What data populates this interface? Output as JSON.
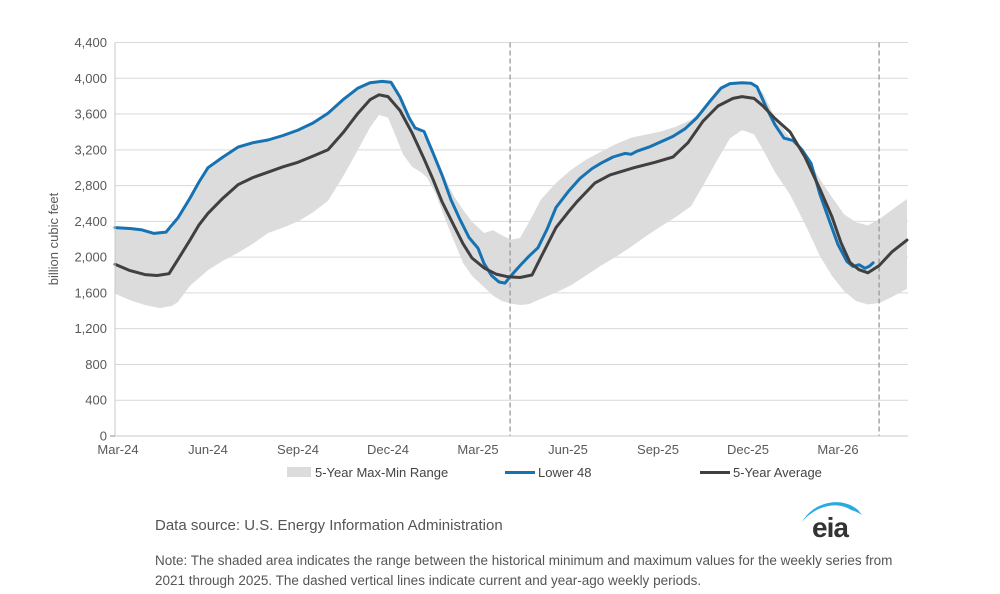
{
  "legend": {
    "items": [
      {
        "label": "5-Year Max-Min Range",
        "swatch": "band",
        "color": "#dcdcdc"
      },
      {
        "label": "Lower 48",
        "swatch": "line",
        "color": "#1772b2"
      },
      {
        "label": "5-Year Average",
        "swatch": "line",
        "color": "#404040"
      }
    ]
  },
  "footer": {
    "data_source": "Data source: U.S. Energy Information Administration",
    "note": "Note: The shaded area indicates the range between the historical minimum and maximum values for the weekly series from 2021 through 2025. The dashed vertical lines indicate current and year-ago weekly periods.",
    "logo_text": "eia"
  },
  "colors": {
    "grid": "#d9d9d9",
    "axis": "#c9c9c9",
    "tick_text": "#595959",
    "dashed_line": "#9e9e9e",
    "band": "#dcdcdc",
    "lower48": "#1772b2",
    "average": "#404040",
    "logo_swoosh": "#29abe2",
    "logo_text": "#333333"
  },
  "chart_data": {
    "type": "line",
    "title": "",
    "xlabel": "",
    "ylabel": "billion cubic feet",
    "ylim": [
      0,
      4400
    ],
    "y_tick_step": 400,
    "grid": true,
    "legend_position": "bottom",
    "x_unit": "months since Mar-2024",
    "x_range": [
      -0.1,
      26.3
    ],
    "x_ticks": [
      {
        "label": "Mar-24",
        "m": 0
      },
      {
        "label": "Jun-24",
        "m": 3
      },
      {
        "label": "Sep-24",
        "m": 6
      },
      {
        "label": "Dec-24",
        "m": 9
      },
      {
        "label": "Mar-25",
        "m": 12
      },
      {
        "label": "Jun-25",
        "m": 15
      },
      {
        "label": "Sep-25",
        "m": 18
      },
      {
        "label": "Dec-25",
        "m": 21
      },
      {
        "label": "Mar-26",
        "m": 24
      }
    ],
    "vlines": [
      {
        "m": 13.07,
        "meaning": "year-ago weekly period"
      },
      {
        "m": 25.37,
        "meaning": "current weekly period"
      }
    ],
    "series": [
      {
        "name": "5-Year Max-Min Range",
        "type": "band",
        "color": "#dcdcdc",
        "points_m_max_min": [
          [
            -0.1,
            2340,
            1590
          ],
          [
            0.4,
            2325,
            1520
          ],
          [
            0.9,
            2295,
            1465
          ],
          [
            1.4,
            2265,
            1430
          ],
          [
            1.8,
            2320,
            1455
          ],
          [
            2.0,
            2440,
            1500
          ],
          [
            2.4,
            2665,
            1680
          ],
          [
            3.0,
            3005,
            1855
          ],
          [
            3.5,
            3125,
            1960
          ],
          [
            4.0,
            3235,
            2050
          ],
          [
            4.5,
            3285,
            2150
          ],
          [
            5.0,
            3315,
            2270
          ],
          [
            5.5,
            3365,
            2330
          ],
          [
            6.0,
            3425,
            2400
          ],
          [
            6.5,
            3505,
            2500
          ],
          [
            7.0,
            3615,
            2630
          ],
          [
            7.5,
            3765,
            2900
          ],
          [
            8.0,
            3895,
            3200
          ],
          [
            8.4,
            3955,
            3450
          ],
          [
            8.7,
            3965,
            3590
          ],
          [
            9.0,
            3960,
            3560
          ],
          [
            9.2,
            3940,
            3400
          ],
          [
            9.5,
            3705,
            3150
          ],
          [
            9.8,
            3455,
            3010
          ],
          [
            10.1,
            3400,
            2950
          ],
          [
            10.3,
            3300,
            2890
          ],
          [
            10.6,
            3120,
            2700
          ],
          [
            10.9,
            2880,
            2430
          ],
          [
            11.2,
            2680,
            2180
          ],
          [
            11.5,
            2530,
            1935
          ],
          [
            11.8,
            2395,
            1790
          ],
          [
            12.2,
            2270,
            1665
          ],
          [
            12.5,
            2300,
            1570
          ],
          [
            12.8,
            2245,
            1510
          ],
          [
            13.1,
            2195,
            1480
          ],
          [
            13.4,
            2215,
            1465
          ],
          [
            13.7,
            2390,
            1475
          ],
          [
            14.1,
            2645,
            1535
          ],
          [
            14.6,
            2830,
            1605
          ],
          [
            15.1,
            2975,
            1685
          ],
          [
            15.6,
            3090,
            1795
          ],
          [
            16.1,
            3180,
            1905
          ],
          [
            16.6,
            3265,
            2005
          ],
          [
            17.1,
            3335,
            2115
          ],
          [
            17.6,
            3370,
            2235
          ],
          [
            18.1,
            3405,
            2345
          ],
          [
            18.6,
            3460,
            2450
          ],
          [
            19.1,
            3535,
            2570
          ],
          [
            19.5,
            3650,
            2800
          ],
          [
            20.0,
            3860,
            3100
          ],
          [
            20.4,
            3935,
            3330
          ],
          [
            20.8,
            3945,
            3420
          ],
          [
            21.2,
            3925,
            3375
          ],
          [
            21.5,
            3835,
            3200
          ],
          [
            21.9,
            3560,
            2950
          ],
          [
            22.4,
            3330,
            2700
          ],
          [
            22.9,
            3140,
            2370
          ],
          [
            23.4,
            2870,
            2010
          ],
          [
            23.8,
            2670,
            1790
          ],
          [
            24.2,
            2480,
            1620
          ],
          [
            24.6,
            2390,
            1510
          ],
          [
            25.0,
            2355,
            1470
          ],
          [
            25.4,
            2430,
            1490
          ],
          [
            25.8,
            2530,
            1555
          ],
          [
            26.3,
            2650,
            1645
          ]
        ]
      },
      {
        "name": "Lower 48",
        "type": "line",
        "color": "#1772b2",
        "width": 3,
        "points_m_value": [
          [
            -0.1,
            2330
          ],
          [
            0.4,
            2320
          ],
          [
            0.8,
            2305
          ],
          [
            1.2,
            2265
          ],
          [
            1.6,
            2280
          ],
          [
            2.0,
            2440
          ],
          [
            2.4,
            2660
          ],
          [
            2.7,
            2840
          ],
          [
            3.0,
            3000
          ],
          [
            3.5,
            3120
          ],
          [
            4.0,
            3230
          ],
          [
            4.5,
            3280
          ],
          [
            5.0,
            3310
          ],
          [
            5.5,
            3360
          ],
          [
            6.0,
            3420
          ],
          [
            6.5,
            3500
          ],
          [
            7.0,
            3610
          ],
          [
            7.5,
            3760
          ],
          [
            8.0,
            3890
          ],
          [
            8.4,
            3950
          ],
          [
            8.8,
            3965
          ],
          [
            9.1,
            3955
          ],
          [
            9.4,
            3790
          ],
          [
            9.7,
            3560
          ],
          [
            9.9,
            3445
          ],
          [
            10.2,
            3405
          ],
          [
            10.5,
            3165
          ],
          [
            10.8,
            2920
          ],
          [
            11.1,
            2640
          ],
          [
            11.4,
            2420
          ],
          [
            11.7,
            2220
          ],
          [
            12.0,
            2100
          ],
          [
            12.2,
            1930
          ],
          [
            12.45,
            1795
          ],
          [
            12.7,
            1722
          ],
          [
            12.9,
            1710
          ],
          [
            13.07,
            1780
          ],
          [
            13.4,
            1905
          ],
          [
            13.7,
            2010
          ],
          [
            14.0,
            2105
          ],
          [
            14.3,
            2310
          ],
          [
            14.6,
            2555
          ],
          [
            15.0,
            2730
          ],
          [
            15.4,
            2880
          ],
          [
            15.8,
            2990
          ],
          [
            16.1,
            3050
          ],
          [
            16.5,
            3120
          ],
          [
            16.9,
            3160
          ],
          [
            17.1,
            3150
          ],
          [
            17.3,
            3185
          ],
          [
            17.7,
            3230
          ],
          [
            18.1,
            3290
          ],
          [
            18.5,
            3350
          ],
          [
            18.9,
            3435
          ],
          [
            19.3,
            3560
          ],
          [
            19.7,
            3730
          ],
          [
            20.1,
            3890
          ],
          [
            20.4,
            3940
          ],
          [
            20.8,
            3950
          ],
          [
            21.1,
            3945
          ],
          [
            21.3,
            3905
          ],
          [
            21.6,
            3680
          ],
          [
            21.9,
            3480
          ],
          [
            22.2,
            3330
          ],
          [
            22.5,
            3305
          ],
          [
            22.8,
            3200
          ],
          [
            23.1,
            3050
          ],
          [
            23.4,
            2700
          ],
          [
            23.7,
            2420
          ],
          [
            24.0,
            2140
          ],
          [
            24.3,
            1950
          ],
          [
            24.5,
            1895
          ],
          [
            24.7,
            1915
          ],
          [
            24.9,
            1875
          ],
          [
            25.05,
            1900
          ],
          [
            25.17,
            1935
          ]
        ]
      },
      {
        "name": "5-Year Average",
        "type": "line",
        "color": "#404040",
        "width": 3,
        "points_m_value": [
          [
            -0.1,
            1920
          ],
          [
            0.4,
            1850
          ],
          [
            0.9,
            1805
          ],
          [
            1.3,
            1795
          ],
          [
            1.7,
            1815
          ],
          [
            2.0,
            1975
          ],
          [
            2.4,
            2190
          ],
          [
            2.7,
            2360
          ],
          [
            3.0,
            2490
          ],
          [
            3.5,
            2660
          ],
          [
            4.0,
            2810
          ],
          [
            4.5,
            2890
          ],
          [
            5.0,
            2950
          ],
          [
            5.5,
            3010
          ],
          [
            6.0,
            3060
          ],
          [
            6.5,
            3130
          ],
          [
            7.0,
            3200
          ],
          [
            7.5,
            3390
          ],
          [
            8.0,
            3610
          ],
          [
            8.4,
            3760
          ],
          [
            8.7,
            3815
          ],
          [
            9.0,
            3795
          ],
          [
            9.4,
            3640
          ],
          [
            9.8,
            3390
          ],
          [
            10.2,
            3100
          ],
          [
            10.5,
            2870
          ],
          [
            10.8,
            2620
          ],
          [
            11.2,
            2350
          ],
          [
            11.5,
            2150
          ],
          [
            11.8,
            1990
          ],
          [
            12.2,
            1880
          ],
          [
            12.6,
            1810
          ],
          [
            13.0,
            1780
          ],
          [
            13.4,
            1772
          ],
          [
            13.8,
            1800
          ],
          [
            14.1,
            2000
          ],
          [
            14.6,
            2330
          ],
          [
            15.0,
            2500
          ],
          [
            15.3,
            2620
          ],
          [
            15.9,
            2830
          ],
          [
            16.4,
            2920
          ],
          [
            17.2,
            3000
          ],
          [
            17.9,
            3060
          ],
          [
            18.5,
            3120
          ],
          [
            19.0,
            3280
          ],
          [
            19.5,
            3520
          ],
          [
            20.0,
            3690
          ],
          [
            20.5,
            3775
          ],
          [
            20.8,
            3795
          ],
          [
            21.2,
            3775
          ],
          [
            21.5,
            3690
          ],
          [
            21.9,
            3550
          ],
          [
            22.4,
            3400
          ],
          [
            22.9,
            3120
          ],
          [
            23.4,
            2760
          ],
          [
            23.8,
            2450
          ],
          [
            24.1,
            2160
          ],
          [
            24.4,
            1940
          ],
          [
            24.7,
            1860
          ],
          [
            25.0,
            1825
          ],
          [
            25.37,
            1905
          ],
          [
            25.8,
            2060
          ],
          [
            26.3,
            2190
          ]
        ]
      }
    ]
  }
}
